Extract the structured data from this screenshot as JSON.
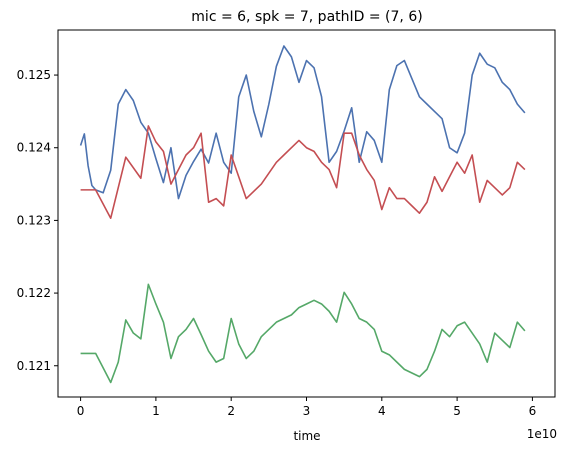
{
  "chart_data": {
    "type": "line",
    "title": "mic = 6, spk = 7, pathID = (7, 6)",
    "xlabel": "time",
    "x_offset_label": "1e10",
    "x_ticks": [
      0,
      1,
      2,
      3,
      4,
      5,
      6
    ],
    "x_tick_labels": [
      "0",
      "1",
      "2",
      "3",
      "4",
      "5",
      "6"
    ],
    "y_ticks": [
      0.121,
      0.122,
      0.123,
      0.124,
      0.125
    ],
    "y_tick_labels": [
      "0.121",
      "0.122",
      "0.123",
      "0.124",
      "0.125"
    ],
    "xlim": [
      -0.3,
      6.3
    ],
    "ylim": [
      0.12057,
      0.12562
    ],
    "grid": false,
    "legend": "none",
    "series": [
      {
        "color": "#4c72b0",
        "x": [
          0.0,
          0.05,
          0.1,
          0.15,
          0.2,
          0.3,
          0.4,
          0.5,
          0.6,
          0.7,
          0.8,
          0.9,
          1.0,
          1.1,
          1.2,
          1.3,
          1.4,
          1.5,
          1.6,
          1.7,
          1.8,
          1.9,
          2.0,
          2.1,
          2.2,
          2.3,
          2.4,
          2.5,
          2.6,
          2.7,
          2.8,
          2.9,
          3.0,
          3.1,
          3.2,
          3.3,
          3.4,
          3.5,
          3.6,
          3.7,
          3.8,
          3.9,
          4.0,
          4.1,
          4.2,
          4.3,
          4.4,
          4.5,
          4.6,
          4.7,
          4.8,
          4.9,
          5.0,
          5.1,
          5.2,
          5.3,
          5.4,
          5.5,
          5.6,
          5.7,
          5.8,
          5.9
        ],
        "y": [
          0.12403,
          0.12419,
          0.12375,
          0.12348,
          0.12342,
          0.12338,
          0.12369,
          0.1246,
          0.1248,
          0.12465,
          0.12435,
          0.1242,
          0.12385,
          0.12352,
          0.124,
          0.1233,
          0.12362,
          0.12381,
          0.12398,
          0.12379,
          0.1242,
          0.1238,
          0.12365,
          0.1247,
          0.125,
          0.1245,
          0.12415,
          0.1246,
          0.12512,
          0.1254,
          0.12525,
          0.1249,
          0.1252,
          0.1251,
          0.1247,
          0.1238,
          0.12395,
          0.12423,
          0.12455,
          0.1238,
          0.12422,
          0.1241,
          0.1238,
          0.1248,
          0.12513,
          0.1252,
          0.12495,
          0.1247,
          0.1246,
          0.1245,
          0.1244,
          0.124,
          0.12393,
          0.1242,
          0.125,
          0.1253,
          0.12515,
          0.1251,
          0.1249,
          0.1248,
          0.1246,
          0.12448
        ]
      },
      {
        "color": "#c44e52",
        "x": [
          0.0,
          0.2,
          0.4,
          0.6,
          0.8,
          0.9,
          1.0,
          1.1,
          1.2,
          1.3,
          1.4,
          1.5,
          1.6,
          1.7,
          1.8,
          1.9,
          2.0,
          2.1,
          2.2,
          2.3,
          2.4,
          2.5,
          2.6,
          2.7,
          2.8,
          2.9,
          3.0,
          3.1,
          3.2,
          3.3,
          3.4,
          3.5,
          3.6,
          3.7,
          3.8,
          3.9,
          4.0,
          4.1,
          4.2,
          4.3,
          4.4,
          4.5,
          4.6,
          4.7,
          4.8,
          4.9,
          5.0,
          5.1,
          5.2,
          5.3,
          5.4,
          5.5,
          5.6,
          5.7,
          5.8,
          5.9
        ],
        "y": [
          0.12342,
          0.12342,
          0.12303,
          0.12387,
          0.12358,
          0.1243,
          0.12408,
          0.12395,
          0.1235,
          0.1237,
          0.1239,
          0.124,
          0.1242,
          0.12325,
          0.1233,
          0.1232,
          0.1239,
          0.1236,
          0.1233,
          0.1234,
          0.1235,
          0.12365,
          0.1238,
          0.1239,
          0.124,
          0.1241,
          0.124,
          0.12395,
          0.1238,
          0.1237,
          0.12345,
          0.1242,
          0.1242,
          0.1239,
          0.1237,
          0.12355,
          0.12315,
          0.12345,
          0.1233,
          0.1233,
          0.1232,
          0.1231,
          0.12325,
          0.1236,
          0.1234,
          0.1236,
          0.1238,
          0.12365,
          0.1239,
          0.12325,
          0.12355,
          0.12345,
          0.12335,
          0.12345,
          0.1238,
          0.1237
        ]
      },
      {
        "color": "#55a868",
        "x": [
          0.0,
          0.2,
          0.3,
          0.4,
          0.5,
          0.6,
          0.7,
          0.8,
          0.9,
          1.0,
          1.1,
          1.2,
          1.3,
          1.4,
          1.5,
          1.6,
          1.7,
          1.8,
          1.9,
          2.0,
          2.1,
          2.2,
          2.3,
          2.4,
          2.5,
          2.6,
          2.7,
          2.8,
          2.9,
          3.0,
          3.1,
          3.2,
          3.3,
          3.4,
          3.5,
          3.6,
          3.7,
          3.8,
          3.9,
          4.0,
          4.1,
          4.2,
          4.3,
          4.4,
          4.5,
          4.6,
          4.7,
          4.8,
          4.9,
          5.0,
          5.1,
          5.2,
          5.3,
          5.4,
          5.5,
          5.6,
          5.7,
          5.8,
          5.9
        ],
        "y": [
          0.12117,
          0.12117,
          0.12097,
          0.12077,
          0.12105,
          0.12163,
          0.12145,
          0.12137,
          0.12212,
          0.12185,
          0.1216,
          0.1211,
          0.1214,
          0.1215,
          0.12165,
          0.12143,
          0.1212,
          0.12105,
          0.1211,
          0.12165,
          0.1213,
          0.1211,
          0.1212,
          0.1214,
          0.1215,
          0.1216,
          0.12165,
          0.1217,
          0.1218,
          0.12185,
          0.1219,
          0.12185,
          0.12175,
          0.1216,
          0.12201,
          0.12185,
          0.12165,
          0.1216,
          0.1215,
          0.1212,
          0.12115,
          0.12105,
          0.12095,
          0.1209,
          0.12085,
          0.12095,
          0.1212,
          0.1215,
          0.1214,
          0.12155,
          0.1216,
          0.12145,
          0.1213,
          0.12105,
          0.12145,
          0.12135,
          0.12125,
          0.1216,
          0.12148
        ]
      }
    ]
  }
}
